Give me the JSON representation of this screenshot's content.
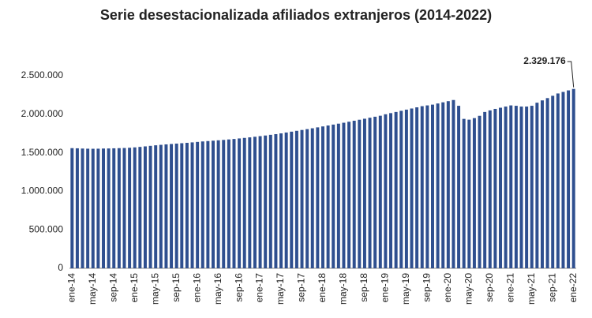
{
  "chart_data": {
    "type": "bar",
    "title": "Serie desestacionalizada afiliados extranjeros (2014-2022)",
    "categories": [
      "ene-14",
      null,
      null,
      null,
      "may-14",
      null,
      null,
      null,
      "sep-14",
      null,
      null,
      null,
      "ene-15",
      null,
      null,
      null,
      "may-15",
      null,
      null,
      null,
      "sep-15",
      null,
      null,
      null,
      "ene-16",
      null,
      null,
      null,
      "may-16",
      null,
      null,
      null,
      "sep-16",
      null,
      null,
      null,
      "ene-17",
      null,
      null,
      null,
      "may-17",
      null,
      null,
      null,
      "sep-17",
      null,
      null,
      null,
      "ene-18",
      null,
      null,
      null,
      "may-18",
      null,
      null,
      null,
      "sep-18",
      null,
      null,
      null,
      "ene-19",
      null,
      null,
      null,
      "may-19",
      null,
      null,
      null,
      "sep-19",
      null,
      null,
      null,
      "ene-20",
      null,
      null,
      null,
      "may-20",
      null,
      null,
      null,
      "sep-20",
      null,
      null,
      null,
      "ene-21",
      null,
      null,
      null,
      "may-21",
      null,
      null,
      null,
      "sep-21",
      null,
      null,
      null,
      "ene-22"
    ],
    "values": [
      1560000,
      1558000,
      1555000,
      1553000,
      1552000,
      1553000,
      1555000,
      1556000,
      1558000,
      1560000,
      1562000,
      1565000,
      1570000,
      1576000,
      1583000,
      1590000,
      1597000,
      1603000,
      1609000,
      1614000,
      1619000,
      1624000,
      1629000,
      1635000,
      1641000,
      1647000,
      1652000,
      1657000,
      1662000,
      1667000,
      1673000,
      1679000,
      1686000,
      1693000,
      1700000,
      1708000,
      1716000,
      1724000,
      1733000,
      1742000,
      1752000,
      1763000,
      1774000,
      1785000,
      1796000,
      1807000,
      1818000,
      1830000,
      1842000,
      1854000,
      1866000,
      1878000,
      1890000,
      1903000,
      1916000,
      1929000,
      1942000,
      1955000,
      1968000,
      1981000,
      2000000,
      2015000,
      2030000,
      2045000,
      2060000,
      2075000,
      2090000,
      2105000,
      2115000,
      2125000,
      2140000,
      2155000,
      2170000,
      2185000,
      2110000,
      1940000,
      1930000,
      1950000,
      1980000,
      2030000,
      2050000,
      2070000,
      2085000,
      2100000,
      2115000,
      2110000,
      2100000,
      2100000,
      2110000,
      2150000,
      2180000,
      2210000,
      2240000,
      2270000,
      2290000,
      2310000,
      2329176
    ],
    "value_labels": [
      null,
      null,
      null,
      null,
      null,
      null,
      null,
      null,
      null,
      null,
      null,
      null,
      null,
      null,
      null,
      null,
      null,
      null,
      null,
      null,
      null,
      null,
      null,
      null,
      null,
      null,
      null,
      null,
      null,
      null,
      null,
      null,
      null,
      null,
      null,
      null,
      null,
      null,
      null,
      null,
      null,
      null,
      null,
      null,
      null,
      null,
      null,
      null,
      null,
      null,
      null,
      null,
      null,
      null,
      null,
      null,
      null,
      null,
      null,
      null,
      null,
      null,
      null,
      null,
      null,
      null,
      null,
      null,
      null,
      null,
      null,
      null,
      null,
      null,
      null,
      null,
      null,
      null,
      null,
      null,
      null,
      null,
      null,
      null,
      null,
      null,
      null,
      null,
      null,
      null,
      null,
      null,
      null,
      null,
      null,
      null,
      "2.329.176"
    ],
    "color": "#2f4f8f",
    "ylim": [
      0,
      2500000
    ],
    "yticks": [
      0,
      {
        "value": 500000,
        "label": "500.000"
      },
      {
        "value": 1000000,
        "label": "1.000.000"
      },
      {
        "value": 1500000,
        "label": "1.500.000"
      },
      {
        "value": 2000000,
        "label": "2.000.000"
      },
      {
        "value": 2500000,
        "label": "2.500.000"
      }
    ],
    "grid": false
  }
}
